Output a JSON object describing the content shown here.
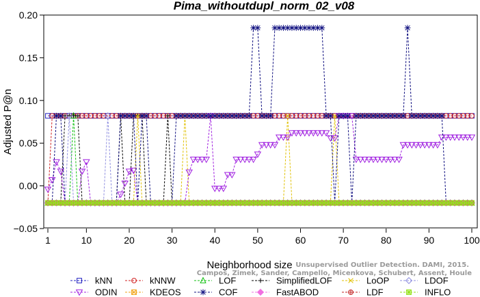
{
  "chart_data": {
    "type": "line",
    "title": "Pima_withoutdupl_norm_02_v08",
    "xlabel": "Neighborhood size",
    "ylabel": "Adjusted P@n",
    "xlim": [
      1,
      100
    ],
    "ylim": [
      -0.05,
      0.2
    ],
    "xticks": [
      1,
      10,
      20,
      30,
      40,
      50,
      60,
      70,
      80,
      90,
      100
    ],
    "yticks": [
      -0.05,
      0.0,
      0.05,
      0.1,
      0.15,
      0.2
    ],
    "ytick_labels": [
      "−0.05",
      "0.00",
      "0.05",
      "0.10",
      "0.15",
      "0.20"
    ],
    "legend_position": "bottom",
    "series": [
      {
        "name": "kNN",
        "color": "#2020c0",
        "marker": "square",
        "points": [
          [
            1,
            0.082
          ],
          [
            100,
            0.082
          ]
        ]
      },
      {
        "name": "kNNW",
        "color": "#d02020",
        "marker": "circle",
        "points": [
          [
            1,
            -0.02
          ],
          [
            2,
            0.082
          ],
          [
            100,
            0.082
          ]
        ]
      },
      {
        "name": "LOF",
        "color": "#10c010",
        "marker": "triangle-up",
        "points": [
          [
            1,
            -0.02
          ],
          [
            6,
            -0.02
          ],
          [
            7,
            0.082
          ],
          [
            8,
            -0.02
          ],
          [
            100,
            -0.02
          ]
        ]
      },
      {
        "name": "SimplifiedLOF",
        "color": "#000000",
        "marker": "plus",
        "points": [
          [
            1,
            -0.02
          ],
          [
            4,
            -0.02
          ],
          [
            5,
            0.082
          ],
          [
            8,
            0.082
          ],
          [
            9,
            -0.02
          ],
          [
            17,
            -0.02
          ],
          [
            18,
            0.082
          ],
          [
            19,
            -0.02
          ],
          [
            20,
            -0.02
          ],
          [
            21,
            0.082
          ],
          [
            23,
            0.082
          ],
          [
            24,
            -0.02
          ],
          [
            28,
            -0.02
          ],
          [
            29,
            0.082
          ],
          [
            30,
            -0.02
          ],
          [
            100,
            -0.02
          ]
        ]
      },
      {
        "name": "LoOP",
        "color": "#e0c000",
        "marker": "x",
        "points": [
          [
            1,
            -0.02
          ],
          [
            21,
            -0.02
          ],
          [
            22,
            0.082
          ],
          [
            23,
            -0.02
          ],
          [
            32,
            -0.02
          ],
          [
            33,
            0.082
          ],
          [
            34,
            -0.02
          ],
          [
            56,
            -0.02
          ],
          [
            57,
            0.082
          ],
          [
            58,
            -0.02
          ],
          [
            67,
            -0.02
          ],
          [
            68,
            0.082
          ],
          [
            69,
            -0.02
          ],
          [
            100,
            -0.02
          ]
        ]
      },
      {
        "name": "LDOF",
        "color": "#9090e0",
        "marker": "diamond",
        "points": [
          [
            1,
            -0.02
          ],
          [
            5,
            -0.02
          ],
          [
            6,
            0.082
          ],
          [
            7,
            -0.02
          ],
          [
            14,
            -0.02
          ],
          [
            15,
            0.082
          ],
          [
            16,
            -0.02
          ],
          [
            100,
            -0.02
          ]
        ]
      },
      {
        "name": "ODIN",
        "color": "#a020e0",
        "marker": "triangle-down",
        "points": [
          [
            1,
            -0.004
          ],
          [
            2,
            0.007
          ],
          [
            3,
            0.028
          ],
          [
            4,
            0.017
          ],
          [
            5,
            -0.02
          ],
          [
            8,
            -0.02
          ],
          [
            9,
            0.017
          ],
          [
            10,
            0.028
          ],
          [
            11,
            -0.02
          ],
          [
            17,
            -0.02
          ],
          [
            18,
            -0.01
          ],
          [
            19,
            0.003
          ],
          [
            20,
            0.017
          ],
          [
            21,
            0.018
          ],
          [
            22,
            -0.02
          ],
          [
            33,
            -0.02
          ],
          [
            34,
            0.016
          ],
          [
            35,
            0.031
          ],
          [
            38,
            0.031
          ],
          [
            39,
            0.082
          ],
          [
            40,
            -0.003
          ],
          [
            41,
            -0.003
          ],
          [
            42,
            -0.003
          ],
          [
            43,
            0.013
          ],
          [
            44,
            0.013
          ],
          [
            45,
            0.031
          ],
          [
            49,
            0.031
          ],
          [
            50,
            0.037
          ],
          [
            51,
            0.048
          ],
          [
            54,
            0.048
          ],
          [
            55,
            0.057
          ],
          [
            57,
            0.057
          ],
          [
            58,
            0.062
          ],
          [
            60,
            0.062
          ],
          [
            67,
            0.056
          ],
          [
            68,
            0.056
          ],
          [
            69,
            0.082
          ],
          [
            72,
            0.082
          ],
          [
            73,
            0.031
          ],
          [
            83,
            0.031
          ],
          [
            84,
            0.048
          ],
          [
            92,
            0.048
          ],
          [
            93,
            0.057
          ],
          [
            100,
            0.057
          ]
        ]
      },
      {
        "name": "KDEOS",
        "color": "#f0a010",
        "marker": "square-x",
        "points": [
          [
            1,
            -0.02
          ],
          [
            100,
            -0.02
          ]
        ]
      },
      {
        "name": "COF",
        "color": "#101080",
        "marker": "asterisk",
        "points": [
          [
            1,
            -0.02
          ],
          [
            2,
            -0.02
          ],
          [
            3,
            0.082
          ],
          [
            4,
            0.082
          ],
          [
            5,
            -0.02
          ],
          [
            17,
            -0.02
          ],
          [
            18,
            0.082
          ],
          [
            21,
            0.082
          ],
          [
            22,
            -0.02
          ],
          [
            23,
            0.082
          ],
          [
            24,
            0.082
          ],
          [
            25,
            -0.02
          ],
          [
            30,
            -0.02
          ],
          [
            31,
            0.082
          ],
          [
            47,
            0.082
          ],
          [
            48,
            0.082
          ],
          [
            49,
            0.185
          ],
          [
            50,
            0.185
          ],
          [
            51,
            0.082
          ],
          [
            53,
            0.082
          ],
          [
            54,
            0.185
          ],
          [
            65,
            0.185
          ],
          [
            66,
            0.082
          ],
          [
            67,
            0.082
          ],
          [
            68,
            -0.02
          ],
          [
            69,
            0.082
          ],
          [
            71,
            0.082
          ],
          [
            72,
            -0.02
          ],
          [
            73,
            0.082
          ],
          [
            84,
            0.082
          ],
          [
            85,
            0.185
          ],
          [
            86,
            0.082
          ],
          [
            93,
            0.082
          ],
          [
            94,
            -0.02
          ],
          [
            100,
            -0.02
          ]
        ]
      },
      {
        "name": "FastABOD",
        "color": "#f070e0",
        "marker": "diamond-filled",
        "points": [
          [
            1,
            -0.02
          ],
          [
            100,
            -0.02
          ]
        ]
      },
      {
        "name": "LDF",
        "color": "#c02020",
        "marker": "circle-plus",
        "points": [
          [
            1,
            -0.02
          ],
          [
            100,
            -0.02
          ]
        ]
      },
      {
        "name": "INFLO",
        "color": "#90e010",
        "marker": "square-star",
        "points": [
          [
            1,
            -0.02
          ],
          [
            100,
            -0.02
          ]
        ]
      }
    ]
  },
  "legend_rows": [
    [
      "kNN",
      "kNNW",
      "LOF",
      "SimplifiedLOF",
      "LoOP",
      "LDOF"
    ],
    [
      "ODIN",
      "KDEOS",
      "COF",
      "FastABOD",
      "LDF",
      "INFLO"
    ]
  ],
  "watermark": [
    "Unsupervised Outlier Detection. DAMI, 2015.",
    "Campos, Zimek, Sander, Campello, Micenkova, Schubert, Assent, Houle"
  ]
}
